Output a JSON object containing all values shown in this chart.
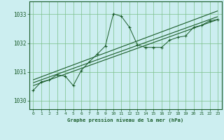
{
  "title": "Graphe pression niveau de la mer (hPa)",
  "bg_color": "#cceef0",
  "grid_color": "#7bbf8a",
  "line_color": "#1a5c2a",
  "xlim": [
    -0.5,
    23.5
  ],
  "ylim": [
    1029.7,
    1033.45
  ],
  "yticks": [
    1030,
    1031,
    1032,
    1033
  ],
  "xticks": [
    0,
    1,
    2,
    3,
    4,
    5,
    6,
    7,
    8,
    9,
    10,
    11,
    12,
    13,
    14,
    15,
    16,
    17,
    18,
    19,
    20,
    21,
    22,
    23
  ],
  "main_x": [
    0,
    1,
    2,
    3,
    4,
    5,
    6,
    7,
    8,
    9,
    10,
    11,
    12,
    13,
    14,
    15,
    16,
    17,
    18,
    19,
    20,
    21,
    22,
    23
  ],
  "main_y": [
    1030.35,
    1030.65,
    1030.72,
    1030.9,
    1030.85,
    1030.52,
    1031.05,
    1031.35,
    1031.62,
    1031.9,
    1033.02,
    1032.93,
    1032.55,
    1031.93,
    1031.85,
    1031.85,
    1031.85,
    1032.1,
    1032.2,
    1032.25,
    1032.55,
    1032.62,
    1032.78,
    1032.82
  ],
  "trend1_x": [
    0,
    23
  ],
  "trend1_y": [
    1030.52,
    1032.82
  ],
  "trend2_x": [
    0,
    23
  ],
  "trend2_y": [
    1030.62,
    1032.92
  ],
  "trend3_x": [
    0,
    23
  ],
  "trend3_y": [
    1030.72,
    1033.12
  ]
}
